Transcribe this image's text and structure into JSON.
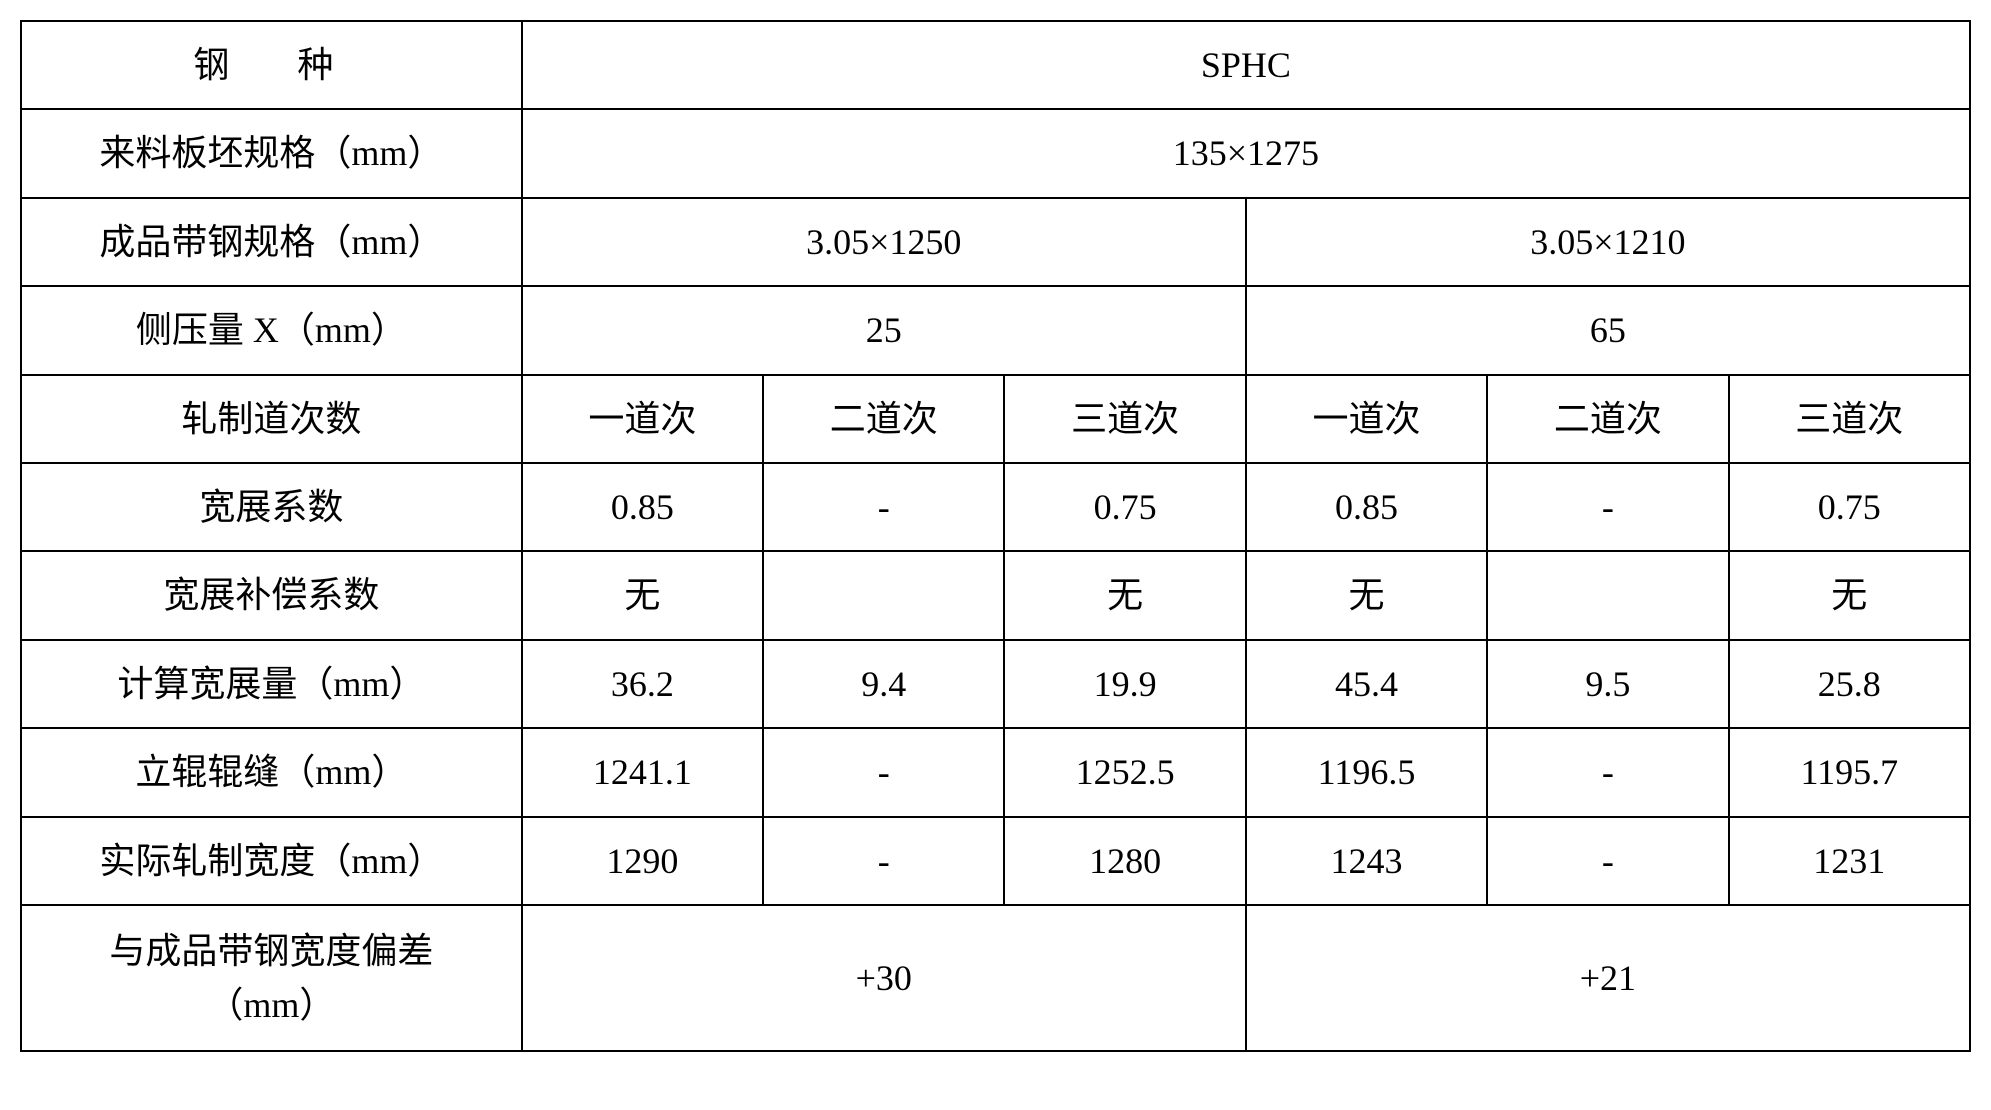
{
  "table": {
    "border_color": "#000000",
    "background_color": "#ffffff",
    "text_color": "#000000",
    "font_size": 36,
    "rows": {
      "r0": {
        "label": "钢　种",
        "value": "SPHC"
      },
      "r1": {
        "label": "来料板坯规格（mm）",
        "value": "135×1275"
      },
      "r2": {
        "label": "成品带钢规格（mm）",
        "left": "3.05×1250",
        "right": "3.05×1210"
      },
      "r3": {
        "label": "侧压量 X（mm）",
        "left": "25",
        "right": "65"
      },
      "r4": {
        "label": "轧制道次数",
        "c1": "一道次",
        "c2": "二道次",
        "c3": "三道次",
        "c4": "一道次",
        "c5": "二道次",
        "c6": "三道次"
      },
      "r5": {
        "label": "宽展系数",
        "c1": "0.85",
        "c2": "-",
        "c3": "0.75",
        "c4": "0.85",
        "c5": "-",
        "c6": "0.75"
      },
      "r6": {
        "label": "宽展补偿系数",
        "c1": "无",
        "c2": "",
        "c3": "无",
        "c4": "无",
        "c5": "",
        "c6": "无"
      },
      "r7": {
        "label": "计算宽展量（mm）",
        "c1": "36.2",
        "c2": "9.4",
        "c3": "19.9",
        "c4": "45.4",
        "c5": "9.5",
        "c6": "25.8"
      },
      "r8": {
        "label": "立辊辊缝（mm）",
        "c1": "1241.1",
        "c2": "-",
        "c3": "1252.5",
        "c4": "1196.5",
        "c5": "-",
        "c6": "1195.7"
      },
      "r9": {
        "label": "实际轧制宽度（mm）",
        "c1": "1290",
        "c2": "-",
        "c3": "1280",
        "c4": "1243",
        "c5": "-",
        "c6": "1231"
      },
      "r10": {
        "label_line1": "与成品带钢宽度偏差",
        "label_line2": "（mm）",
        "left": "+30",
        "right": "+21"
      }
    }
  }
}
